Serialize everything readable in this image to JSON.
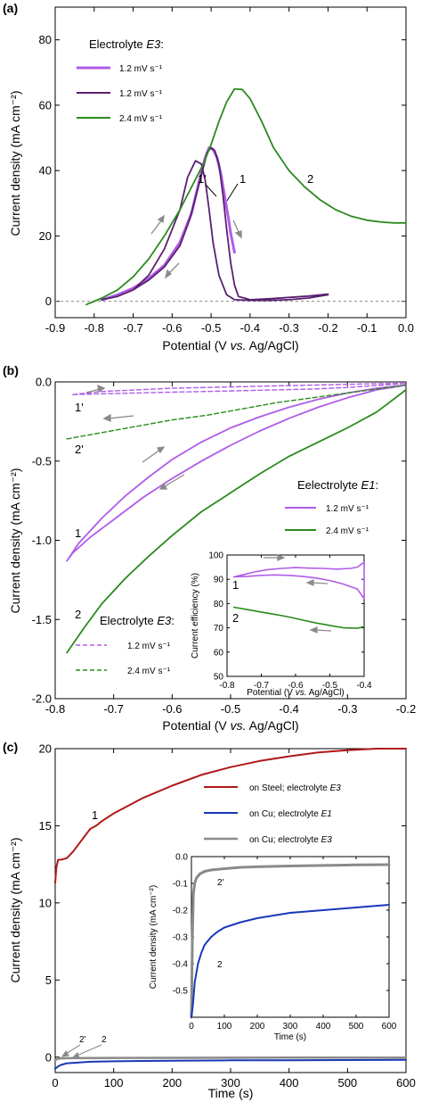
{
  "colors": {
    "violet": "#b05ce8",
    "dark_violet": "#5a2070",
    "green": "#2b8a1e",
    "red": "#b01818",
    "blue": "#1838b8",
    "gray": "#8a8a8a",
    "arrow": "#8a8a8a"
  },
  "chart_data": [
    {
      "panel": "(a)",
      "type": "line",
      "xlabel": "Potential (V vs. Ag/AgCl)",
      "ylabel": "Current density (mA cm⁻²)",
      "xlim": [
        -0.9,
        0.0
      ],
      "ylim": [
        -5,
        90
      ],
      "xticks": [
        -0.9,
        -0.8,
        -0.7,
        -0.6,
        -0.5,
        -0.4,
        -0.3,
        -0.2,
        -0.1,
        0.0
      ],
      "yticks": [
        0,
        20,
        40,
        60,
        80
      ],
      "legend_title": "Electrolyte E3:",
      "legend_placement": "top-left",
      "zero_line": true,
      "annotations": [
        {
          "text": "1'",
          "x": -0.535,
          "y": 34
        },
        {
          "text": "1",
          "x": -0.435,
          "y": 34
        },
        {
          "text": "2",
          "x": -0.21,
          "y": 34
        }
      ],
      "series": [
        {
          "name": "1.2 mV s⁻¹",
          "color": "violet",
          "width": 3,
          "x": [
            -0.78,
            -0.74,
            -0.7,
            -0.66,
            -0.62,
            -0.58,
            -0.55,
            -0.53,
            -0.515,
            -0.505,
            -0.495,
            -0.485,
            -0.475,
            -0.465,
            -0.455,
            -0.45,
            -0.445,
            -0.44
          ],
          "y": [
            0.5,
            2,
            4,
            7,
            11,
            18,
            27,
            37,
            44,
            47,
            46.5,
            44,
            39,
            32,
            25,
            21,
            18,
            15
          ]
        },
        {
          "name": "1.2 mV s⁻¹",
          "color": "dark_violet",
          "width": 1.8,
          "x": [
            -0.78,
            -0.74,
            -0.7,
            -0.66,
            -0.62,
            -0.58,
            -0.555,
            -0.535,
            -0.52,
            -0.51,
            -0.5,
            -0.49,
            -0.48,
            -0.47,
            -0.46,
            -0.45,
            -0.44,
            -0.43,
            -0.4,
            -0.35,
            -0.3,
            -0.25,
            -0.2,
            -0.2,
            -0.25,
            -0.3,
            -0.35,
            -0.4,
            -0.44,
            -0.46,
            -0.48,
            -0.495,
            -0.505,
            -0.515,
            -0.525,
            -0.54,
            -0.56,
            -0.58,
            -0.62,
            -0.66,
            -0.7,
            -0.74,
            -0.78
          ],
          "y": [
            0.5,
            1.5,
            3.5,
            6.5,
            10.5,
            17,
            25,
            34,
            41,
            45.5,
            47,
            46,
            42,
            33,
            22,
            12,
            5,
            1.5,
            0.5,
            0.8,
            1.2,
            1.6,
            2.2,
            2.0,
            1.0,
            0.5,
            0.3,
            0.3,
            0.5,
            2,
            8,
            18,
            28,
            37,
            42,
            43,
            38,
            28,
            16,
            8,
            3.5,
            1.5,
            0.5
          ]
        },
        {
          "name": "2.4 mV s⁻¹",
          "color": "green",
          "width": 1.8,
          "x": [
            -0.82,
            -0.78,
            -0.74,
            -0.7,
            -0.66,
            -0.62,
            -0.58,
            -0.55,
            -0.52,
            -0.5,
            -0.48,
            -0.46,
            -0.44,
            -0.42,
            -0.4,
            -0.37,
            -0.34,
            -0.3,
            -0.26,
            -0.22,
            -0.18,
            -0.14,
            -0.1,
            -0.06,
            -0.03,
            0.0
          ],
          "y": [
            -1,
            1,
            3.5,
            7.5,
            13,
            20,
            28,
            35,
            42,
            48,
            55,
            61,
            65,
            64.8,
            62,
            55,
            47,
            40,
            35,
            31,
            28,
            26,
            24.8,
            24.2,
            24,
            24
          ]
        }
      ]
    },
    {
      "panel": "(b)",
      "type": "line",
      "xlabel": "Potential (V vs. Ag/AgCl)",
      "ylabel": "Current density (mA cm⁻²)",
      "xlim": [
        -0.8,
        -0.2
      ],
      "ylim": [
        -2.0,
        0.0
      ],
      "xticks": [
        -0.8,
        -0.7,
        -0.6,
        -0.5,
        -0.4,
        -0.3,
        -0.2
      ],
      "yticks": [
        0.0,
        -0.5,
        -1.0,
        -1.5,
        -2.0
      ],
      "legend_title": "Eelectrolyte E1:",
      "legend2_title": "Electrolyte E3:",
      "legend_placement": "right",
      "annotations": [
        {
          "text": "1'",
          "x": -0.78,
          "y": -0.16
        },
        {
          "text": "2'",
          "x": -0.78,
          "y": -0.43
        },
        {
          "text": "1",
          "x": -0.78,
          "y": -0.97
        },
        {
          "text": "2",
          "x": -0.78,
          "y": -1.5
        }
      ],
      "series": [
        {
          "name": "1.2 mV s⁻¹",
          "color": "violet",
          "width": 1.8,
          "dash": false,
          "x": [
            -0.78,
            -0.76,
            -0.72,
            -0.68,
            -0.64,
            -0.6,
            -0.55,
            -0.5,
            -0.45,
            -0.4,
            -0.35,
            -0.3,
            -0.25,
            -0.2,
            -0.2,
            -0.25,
            -0.3,
            -0.35,
            -0.4,
            -0.45,
            -0.5,
            -0.55,
            -0.6,
            -0.65,
            -0.7,
            -0.74,
            -0.77,
            -0.78
          ],
          "y": [
            -1.13,
            -1.02,
            -0.86,
            -0.72,
            -0.6,
            -0.49,
            -0.38,
            -0.29,
            -0.22,
            -0.16,
            -0.11,
            -0.07,
            -0.04,
            -0.02,
            -0.02,
            -0.05,
            -0.1,
            -0.16,
            -0.23,
            -0.31,
            -0.4,
            -0.5,
            -0.61,
            -0.73,
            -0.87,
            -0.98,
            -1.08,
            -1.13
          ]
        },
        {
          "name": "2.4 mV s⁻¹",
          "color": "green",
          "width": 1.8,
          "dash": false,
          "x": [
            -0.78,
            -0.75,
            -0.72,
            -0.68,
            -0.64,
            -0.6,
            -0.55,
            -0.5,
            -0.45,
            -0.4,
            -0.35,
            -0.3,
            -0.25,
            -0.2
          ],
          "y": [
            -1.71,
            -1.55,
            -1.4,
            -1.24,
            -1.1,
            -0.97,
            -0.82,
            -0.7,
            -0.58,
            -0.47,
            -0.38,
            -0.29,
            -0.19,
            -0.05
          ]
        },
        {
          "name": "1.2 mV s⁻¹",
          "color": "violet",
          "width": 1.4,
          "dash": true,
          "x": [
            -0.77,
            -0.72,
            -0.66,
            -0.6,
            -0.54,
            -0.48,
            -0.42,
            -0.36,
            -0.3,
            -0.24,
            -0.2,
            -0.24,
            -0.3,
            -0.36,
            -0.42,
            -0.48,
            -0.54,
            -0.6,
            -0.66,
            -0.72,
            -0.77
          ],
          "y": [
            -0.08,
            -0.06,
            -0.05,
            -0.04,
            -0.035,
            -0.03,
            -0.025,
            -0.02,
            -0.015,
            -0.01,
            -0.01,
            -0.02,
            -0.035,
            -0.045,
            -0.05,
            -0.055,
            -0.06,
            -0.065,
            -0.07,
            -0.075,
            -0.08
          ]
        },
        {
          "name": "2.4 mV s⁻¹",
          "color": "green",
          "width": 1.4,
          "dash": true,
          "x": [
            -0.78,
            -0.72,
            -0.66,
            -0.6,
            -0.54,
            -0.48,
            -0.42,
            -0.36,
            -0.3,
            -0.24,
            -0.2
          ],
          "y": [
            -0.36,
            -0.32,
            -0.28,
            -0.24,
            -0.21,
            -0.17,
            -0.13,
            -0.1,
            -0.07,
            -0.04,
            -0.02
          ]
        }
      ]
    },
    {
      "panel": "(b) inset",
      "type": "line",
      "xlabel": "Potential (V vs. Ag/AgCl)",
      "ylabel": "Current efficiency (%)",
      "xlim": [
        -0.8,
        -0.4
      ],
      "ylim": [
        50,
        100
      ],
      "xticks": [
        -0.8,
        -0.7,
        -0.6,
        -0.5,
        -0.4
      ],
      "yticks": [
        50,
        60,
        70,
        80,
        90,
        100
      ],
      "annotations": [
        {
          "text": "1",
          "x": -0.78,
          "y": 86
        },
        {
          "text": "2",
          "x": -0.78,
          "y": 73
        }
      ],
      "series": [
        {
          "name": "1.2 mV s⁻¹",
          "color": "violet",
          "width": 1.6,
          "x": [
            -0.78,
            -0.75,
            -0.72,
            -0.68,
            -0.64,
            -0.6,
            -0.56,
            -0.52,
            -0.48,
            -0.44,
            -0.42,
            -0.4,
            -0.4,
            -0.42,
            -0.46,
            -0.5,
            -0.54,
            -0.58,
            -0.62,
            -0.66,
            -0.7,
            -0.74,
            -0.78
          ],
          "y": [
            91,
            92,
            93,
            94,
            94.5,
            94.8,
            94.6,
            94.5,
            94.2,
            94.5,
            95,
            97,
            82,
            86,
            88,
            89.5,
            90.5,
            91.2,
            91.6,
            91.8,
            91.6,
            91.2,
            91
          ]
        },
        {
          "name": "2.4 mV s⁻¹",
          "color": "green",
          "width": 1.6,
          "x": [
            -0.78,
            -0.74,
            -0.7,
            -0.66,
            -0.62,
            -0.58,
            -0.54,
            -0.5,
            -0.46,
            -0.42,
            -0.4
          ],
          "y": [
            78.5,
            77.5,
            76.5,
            75.5,
            74.5,
            73.2,
            72,
            71,
            70,
            69.8,
            70.5
          ]
        }
      ]
    },
    {
      "panel": "(c)",
      "type": "line",
      "xlabel": "Time (s)",
      "ylabel": "Current density (mA cm⁻²)",
      "xlim": [
        0,
        600
      ],
      "ylim": [
        -1,
        20
      ],
      "xticks": [
        0,
        100,
        200,
        300,
        400,
        500,
        600
      ],
      "yticks": [
        0,
        5,
        10,
        15,
        20
      ],
      "legend_placement": "top-right",
      "annotations": [
        {
          "text": "1",
          "x": 70,
          "y": 15.3
        },
        {
          "text": "2'",
          "x": 22,
          "y": 0.6
        },
        {
          "text": "2",
          "x": 42,
          "y": 0.6
        }
      ],
      "series": [
        {
          "name": "on Steel; electrolyte E3",
          "color": "red",
          "width": 2,
          "x": [
            0,
            2,
            5,
            10,
            20,
            30,
            40,
            50,
            60,
            70,
            80,
            100,
            150,
            200,
            250,
            300,
            350,
            400,
            450,
            500,
            550,
            600
          ],
          "y": [
            11.3,
            12.3,
            12.8,
            12.8,
            12.9,
            13.3,
            13.8,
            14.3,
            14.8,
            15.0,
            15.3,
            15.8,
            16.8,
            17.6,
            18.3,
            18.8,
            19.2,
            19.5,
            19.75,
            19.9,
            20.0,
            20.0
          ]
        },
        {
          "name": "on Cu; electrolyte E1",
          "color": "blue",
          "width": 2,
          "x": [
            0,
            5,
            10,
            20,
            40,
            60,
            80,
            100,
            150,
            200,
            300,
            400,
            500,
            600
          ],
          "y": [
            -0.75,
            -0.6,
            -0.5,
            -0.4,
            -0.35,
            -0.3,
            -0.28,
            -0.27,
            -0.25,
            -0.23,
            -0.21,
            -0.2,
            -0.19,
            -0.18
          ]
        },
        {
          "name": "on Cu; electrolyte E3",
          "color": "gray",
          "width": 2.5,
          "x": [
            0,
            5,
            10,
            20,
            50,
            100,
            200,
            300,
            400,
            500,
            600
          ],
          "y": [
            -0.2,
            -0.1,
            -0.08,
            -0.07,
            -0.06,
            -0.05,
            -0.045,
            -0.04,
            -0.035,
            -0.033,
            -0.03
          ]
        }
      ]
    },
    {
      "panel": "(c) inset",
      "type": "line",
      "xlabel": "Time (s)",
      "ylabel": "Current density (mA cm⁻²)",
      "xlim": [
        0,
        600
      ],
      "ylim": [
        -0.6,
        0.0
      ],
      "xticks": [
        0,
        100,
        200,
        300,
        400,
        500,
        600
      ],
      "yticks": [
        0.0,
        -0.1,
        -0.2,
        -0.3,
        -0.4,
        -0.5
      ],
      "annotations": [
        {
          "text": "2'",
          "x": 40,
          "y": -0.095
        },
        {
          "text": "2",
          "x": 40,
          "y": -0.38
        }
      ],
      "series": [
        {
          "name": "on Cu; electrolyte E3",
          "color": "gray",
          "width": 3,
          "x": [
            0,
            3,
            6,
            10,
            15,
            25,
            40,
            60,
            100,
            150,
            200,
            300,
            400,
            500,
            600
          ],
          "y": [
            -0.6,
            -0.3,
            -0.14,
            -0.1,
            -0.08,
            -0.065,
            -0.055,
            -0.05,
            -0.045,
            -0.04,
            -0.038,
            -0.035,
            -0.033,
            -0.031,
            -0.03
          ]
        },
        {
          "name": "on Cu; electrolyte E1",
          "color": "blue",
          "width": 2,
          "x": [
            0,
            5,
            10,
            20,
            30,
            40,
            60,
            80,
            100,
            150,
            200,
            250,
            300,
            350,
            400,
            450,
            500,
            550,
            600
          ],
          "y": [
            -0.6,
            -0.55,
            -0.47,
            -0.4,
            -0.36,
            -0.33,
            -0.3,
            -0.28,
            -0.265,
            -0.245,
            -0.23,
            -0.22,
            -0.21,
            -0.205,
            -0.2,
            -0.195,
            -0.19,
            -0.185,
            -0.18
          ]
        }
      ]
    }
  ],
  "panel_a": {
    "panel_label": "(a)",
    "legend_title": "Electrolyte ",
    "legend_title_em": "E3",
    "legend_title_end": ":",
    "legend": [
      {
        "label": "1.2 mV s⁻¹"
      },
      {
        "label": "1.2 mV s⁻¹"
      },
      {
        "label": "2.4 mV s⁻¹"
      }
    ],
    "xlabel_pre": "Potential (V ",
    "xlabel_em": "vs.",
    "xlabel_post": " Ag/AgCl)",
    "ylabel": "Current density (mA cm⁻²)",
    "ann": [
      "1'",
      "1",
      "2"
    ]
  },
  "panel_b": {
    "panel_label": "(b)",
    "legend_e1_title": "Eelectrolyte ",
    "legend_e1_em": "E1",
    "legend_e1_end": ":",
    "legend_e1": [
      {
        "label": "1.2 mV s⁻¹"
      },
      {
        "label": "2.4 mV s⁻¹"
      }
    ],
    "legend_e3_title": "Electrolyte ",
    "legend_e3_em": "E3",
    "legend_e3_end": ":",
    "legend_e3": [
      {
        "label": "1.2 mV s⁻¹"
      },
      {
        "label": "2.4 mV s⁻¹"
      }
    ],
    "xlabel_pre": "Potential (V ",
    "xlabel_em": "vs.",
    "xlabel_post": " Ag/AgCl)",
    "ylabel": "Current density (mA cm⁻²)",
    "inset_ylabel": "Current efficiency (%)",
    "inset_xlabel_pre": "Potential (V ",
    "inset_xlabel_em": "vs.",
    "inset_xlabel_post": " Ag/AgCl)",
    "ann": [
      "1'",
      "2'",
      "1",
      "2"
    ],
    "inset_ann": [
      "1",
      "2"
    ]
  },
  "panel_c": {
    "panel_label": "(c)",
    "legend": [
      {
        "pre": "on Steel; electrolyte ",
        "em": "E3"
      },
      {
        "pre": "on Cu; electrolyte ",
        "em": "E1"
      },
      {
        "pre": "on Cu; electrolyte ",
        "em": "E3"
      }
    ],
    "xlabel": "Time (s)",
    "ylabel": "Current density (mA cm⁻²)",
    "inset_xlabel": "Time (s)",
    "inset_ylabel": "Current density (mA cm⁻²)",
    "ann": [
      "1",
      "2'",
      "2"
    ],
    "inset_ann": [
      "2'",
      "2"
    ]
  }
}
